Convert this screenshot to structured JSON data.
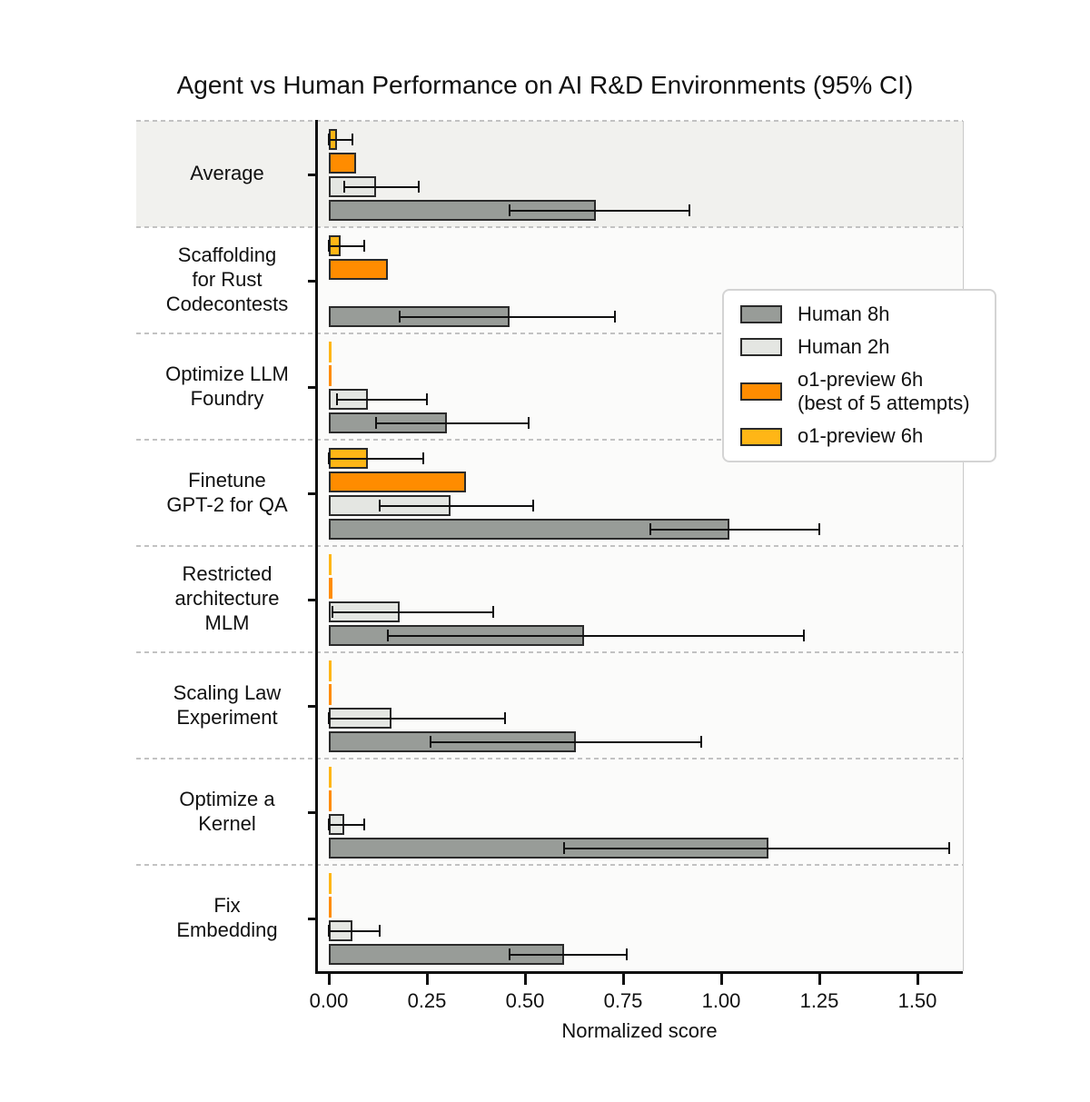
{
  "title": "Agent vs Human Performance on AI R&D Environments (95% CI)",
  "colors": {
    "human_8h": "#989c98",
    "human_2h": "#e4e6e2",
    "o1_best5": "#ff8c00",
    "o1": "#ffb616",
    "bar_edge": "#2b2b2b",
    "error": "#111111",
    "highlight_band": "#f1f1ee",
    "plot_bg": "#fbfbfa",
    "separator": "#c2c2c2",
    "axis": "#111111"
  },
  "legend": {
    "items": [
      {
        "label": "Human 8h",
        "color_key": "human_8h"
      },
      {
        "label": "Human 2h",
        "color_key": "human_2h"
      },
      {
        "label": "o1-preview 6h\n(best of 5 attempts)",
        "color_key": "o1_best5"
      },
      {
        "label": "o1-preview 6h",
        "color_key": "o1"
      }
    ]
  },
  "chart_data": {
    "type": "bar",
    "orientation": "horizontal",
    "title": "Agent vs Human Performance on AI R&D Environments (95% CI)",
    "xlabel": "Normalized score",
    "xlim": [
      -0.03,
      1.62
    ],
    "grid": "category-separators-dashed",
    "legend_position": "upper right",
    "highlight_index": 0,
    "categories": [
      "Average",
      "Scaffolding\nfor Rust\nCodecontests",
      "Optimize LLM\nFoundry",
      "Finetune\nGPT-2 for QA",
      "Restricted\narchitecture\nMLM",
      "Scaling Law\nExperiment",
      "Optimize a\nKernel",
      "Fix\nEmbedding"
    ],
    "x_ticks": [
      {
        "value": 0.0,
        "label": "0.00"
      },
      {
        "value": 0.25,
        "label": "0.25"
      },
      {
        "value": 0.5,
        "label": "0.50"
      },
      {
        "value": 0.75,
        "label": "0.75"
      },
      {
        "value": 1.0,
        "label": "1.00"
      },
      {
        "value": 1.25,
        "label": "1.25"
      },
      {
        "value": 1.5,
        "label": "1.50"
      }
    ],
    "series": [
      {
        "name": "o1-preview 6h",
        "color_key": "o1",
        "values": [
          0.02,
          0.03,
          0.005,
          0.1,
          0.005,
          0.005,
          0.005,
          0.005
        ],
        "ci": [
          [
            0.0,
            0.06
          ],
          [
            0.0,
            0.09
          ],
          null,
          [
            0.0,
            0.24
          ],
          null,
          null,
          null,
          null
        ]
      },
      {
        "name": "o1-preview 6h (best of 5 attempts)",
        "color_key": "o1_best5",
        "values": [
          0.07,
          0.15,
          0.005,
          0.35,
          0.01,
          0.005,
          0.005,
          0.005
        ],
        "ci": [
          null,
          null,
          null,
          null,
          null,
          null,
          null,
          null
        ]
      },
      {
        "name": "Human 2h",
        "color_key": "human_2h",
        "values": [
          0.12,
          null,
          0.1,
          0.31,
          0.18,
          0.16,
          0.04,
          0.06
        ],
        "ci": [
          [
            0.04,
            0.23
          ],
          null,
          [
            0.02,
            0.25
          ],
          [
            0.13,
            0.52
          ],
          [
            0.01,
            0.42
          ],
          [
            0.0,
            0.45
          ],
          [
            0.0,
            0.09
          ],
          [
            0.0,
            0.13
          ]
        ]
      },
      {
        "name": "Human 8h",
        "color_key": "human_8h",
        "values": [
          0.68,
          0.46,
          0.3,
          1.02,
          0.65,
          0.63,
          1.12,
          0.6
        ],
        "ci": [
          [
            0.46,
            0.92
          ],
          [
            0.18,
            0.73
          ],
          [
            0.12,
            0.51
          ],
          [
            0.82,
            1.25
          ],
          [
            0.15,
            1.21
          ],
          [
            0.26,
            0.95
          ],
          [
            0.6,
            1.58
          ],
          [
            0.46,
            0.76
          ]
        ]
      }
    ]
  }
}
